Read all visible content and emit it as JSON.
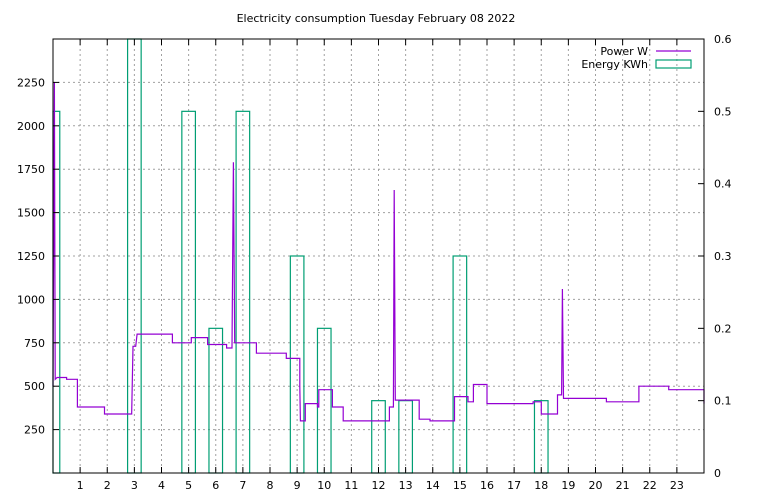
{
  "chart_data": {
    "type": "line",
    "title": "Electricity consumption Tuesday February 08 2022",
    "xlim": [
      0,
      24
    ],
    "ylim": [
      0,
      2500
    ],
    "y2lim": [
      0,
      0.6
    ],
    "x_ticks": [
      1,
      2,
      3,
      4,
      5,
      6,
      7,
      8,
      9,
      10,
      11,
      12,
      13,
      14,
      15,
      16,
      17,
      18,
      19,
      20,
      21,
      22,
      23
    ],
    "x_tick_labels": [
      "1",
      "2",
      "3",
      "4",
      "5",
      "6",
      "7",
      "8",
      "9",
      "10",
      "11",
      "12",
      "13",
      "14",
      "15",
      "16",
      "17",
      "18",
      "19",
      "20",
      "21",
      "22",
      "23"
    ],
    "y_ticks": [
      250,
      500,
      750,
      1000,
      1250,
      1500,
      1750,
      2000,
      2250
    ],
    "y_tick_labels": [
      "250",
      "500",
      "750",
      "1000",
      "1250",
      "1500",
      "1750",
      "2000",
      "2250"
    ],
    "y2_ticks": [
      0,
      0.1,
      0.2,
      0.3,
      0.4,
      0.5,
      0.6
    ],
    "y2_tick_labels": [
      "0",
      "0.1",
      "0.2",
      "0.3",
      "0.4",
      "0.5",
      "0.6"
    ],
    "grid": true,
    "legend_position": "top-right",
    "colors": {
      "power": "#9400d3",
      "energy": "#009e73"
    },
    "series": [
      {
        "name": "Power W",
        "axis": "left",
        "style": "steps",
        "points": [
          [
            0.0,
            500
          ],
          [
            0.05,
            2250
          ],
          [
            0.08,
            540
          ],
          [
            0.15,
            550
          ],
          [
            0.5,
            550
          ],
          [
            0.5,
            540
          ],
          [
            0.9,
            540
          ],
          [
            0.9,
            380
          ],
          [
            1.9,
            380
          ],
          [
            1.9,
            340
          ],
          [
            2.9,
            340
          ],
          [
            2.9,
            350
          ],
          [
            2.95,
            730
          ],
          [
            3.05,
            730
          ],
          [
            3.1,
            800
          ],
          [
            4.4,
            800
          ],
          [
            4.4,
            750
          ],
          [
            5.1,
            750
          ],
          [
            5.1,
            780
          ],
          [
            5.7,
            780
          ],
          [
            5.7,
            740
          ],
          [
            6.4,
            740
          ],
          [
            6.4,
            720
          ],
          [
            6.6,
            720
          ],
          [
            6.65,
            1790
          ],
          [
            6.7,
            750
          ],
          [
            7.5,
            750
          ],
          [
            7.5,
            690
          ],
          [
            8.6,
            690
          ],
          [
            8.6,
            660
          ],
          [
            9.1,
            660
          ],
          [
            9.1,
            500
          ],
          [
            9.12,
            300
          ],
          [
            9.3,
            300
          ],
          [
            9.3,
            400
          ],
          [
            9.75,
            400
          ],
          [
            9.75,
            380
          ],
          [
            9.8,
            380
          ],
          [
            9.8,
            480
          ],
          [
            10.3,
            480
          ],
          [
            10.3,
            380
          ],
          [
            10.7,
            380
          ],
          [
            10.7,
            300
          ],
          [
            12.4,
            300
          ],
          [
            12.4,
            380
          ],
          [
            12.55,
            380
          ],
          [
            12.58,
            1630
          ],
          [
            12.62,
            420
          ],
          [
            13.5,
            420
          ],
          [
            13.5,
            310
          ],
          [
            13.9,
            310
          ],
          [
            13.9,
            300
          ],
          [
            14.8,
            300
          ],
          [
            14.8,
            440
          ],
          [
            15.3,
            440
          ],
          [
            15.3,
            410
          ],
          [
            15.5,
            410
          ],
          [
            15.5,
            510
          ],
          [
            16.0,
            510
          ],
          [
            16.0,
            400
          ],
          [
            17.7,
            400
          ],
          [
            17.7,
            410
          ],
          [
            18.0,
            410
          ],
          [
            18.0,
            340
          ],
          [
            18.6,
            340
          ],
          [
            18.6,
            450
          ],
          [
            18.75,
            450
          ],
          [
            18.78,
            1060
          ],
          [
            18.82,
            430
          ],
          [
            20.4,
            430
          ],
          [
            20.4,
            410
          ],
          [
            21.6,
            410
          ],
          [
            21.6,
            500
          ],
          [
            22.7,
            500
          ],
          [
            22.7,
            480
          ],
          [
            24.0,
            480
          ],
          [
            24.0,
            400
          ]
        ]
      },
      {
        "name": "Energy KWh",
        "axis": "right",
        "style": "boxes",
        "bars": [
          {
            "x": 0.0,
            "value": 0.5
          },
          {
            "x": 3.0,
            "value": 0.6
          },
          {
            "x": 5.0,
            "value": 0.5
          },
          {
            "x": 6.0,
            "value": 0.2
          },
          {
            "x": 7.0,
            "value": 0.5
          },
          {
            "x": 9.0,
            "value": 0.3
          },
          {
            "x": 10.0,
            "value": 0.2
          },
          {
            "x": 12.0,
            "value": 0.1
          },
          {
            "x": 13.0,
            "value": 0.1
          },
          {
            "x": 15.0,
            "value": 0.3
          },
          {
            "x": 18.0,
            "value": 0.1
          }
        ]
      }
    ]
  }
}
